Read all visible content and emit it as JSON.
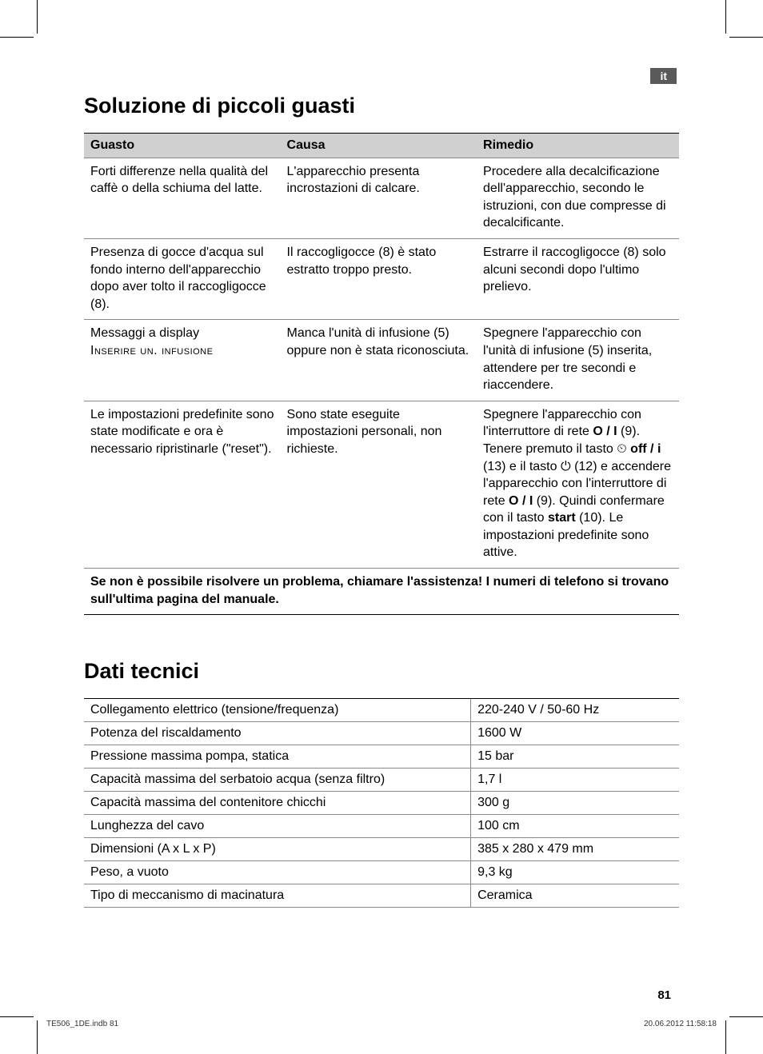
{
  "lang_badge": "it",
  "section1_title": "Soluzione di piccoli guasti",
  "troubleshoot": {
    "headers": [
      "Guasto",
      "Causa",
      "Rimedio"
    ],
    "rows": [
      {
        "fault": "Forti differenze nella qualità del caffè o della schiuma del latte.",
        "cause": "L'apparecchio presenta incrostazioni di calcare.",
        "remedy": "Procedere alla decalcificazione dell'apparecchio, secondo le istruzioni, con due compresse di decalcificante."
      },
      {
        "fault": "Presenza di gocce d'acqua sul fondo interno dell'apparecchio dopo aver tolto il raccogligocce (8).",
        "cause": "Il raccogligocce (8) è stato estratto troppo presto.",
        "remedy": "Estrarre il raccogligocce (8) solo alcuni secondi dopo l'ultimo prelievo."
      },
      {
        "fault_plain": "Messaggi a display ",
        "fault_smallcaps": "Inserire un. infusione",
        "cause": "Manca l'unità di infusione (5) oppure non è stata riconosciuta.",
        "remedy": "Spegnere l'apparecchio con l'unità di infusione (5) inserita, attendere per tre secondi e riaccendere."
      },
      {
        "fault": "Le impostazioni predefinite sono state modificate e ora è necessario ripristinarle (\"reset\").",
        "cause": "Sono state eseguite impostazioni personali, non richieste.",
        "remedy_parts": {
          "p1": "Spegnere l'apparecchio con l'interruttore di rete ",
          "b1": "O / I",
          "p2": " (9). Tenere premuto il tasto ",
          "icon1": "⏲",
          "b2": " off / ",
          "info": "i",
          "p3": " (13) e il tasto ",
          "icon2": "⏻",
          "p4": " (12) e accendere l'apparecchio con l'interruttore di rete ",
          "b3": "O / I",
          "p5": " (9). Quindi confermare con il tasto ",
          "b4": "start",
          "p6": " (10). Le impostazioni predefinite sono attive."
        }
      }
    ],
    "footer_note": "Se non è possibile risolvere un problema, chiamare l'assistenza! I numeri di telefono si trovano sull'ultima pagina del manuale."
  },
  "section2_title": "Dati tecnici",
  "tech_specs": [
    {
      "label": "Collegamento elettrico (tensione/frequenza)",
      "value": "220-240 V / 50-60 Hz"
    },
    {
      "label": "Potenza del riscaldamento",
      "value": "1600 W"
    },
    {
      "label": "Pressione massima pompa, statica",
      "value": "15 bar"
    },
    {
      "label": "Capacità massima del serbatoio acqua (senza filtro)",
      "value": "1,7 l"
    },
    {
      "label": "Capacità massima del contenitore chicchi",
      "value": "300 g"
    },
    {
      "label": "Lunghezza del cavo",
      "value": "100 cm"
    },
    {
      "label": "Dimensioni (A x L x P)",
      "value": "385 x 280 x 479 mm"
    },
    {
      "label": "Peso, a vuoto",
      "value": "9,3 kg"
    },
    {
      "label": "Tipo di meccanismo di macinatura",
      "value": "Ceramica"
    }
  ],
  "page_number": "81",
  "footer_left": "TE506_1DE.indb   81",
  "footer_right": "20.06.2012   11:58:18",
  "colors": {
    "header_bg": "#d0d0d0",
    "badge_bg": "#5a5a5a",
    "border": "#888888"
  }
}
